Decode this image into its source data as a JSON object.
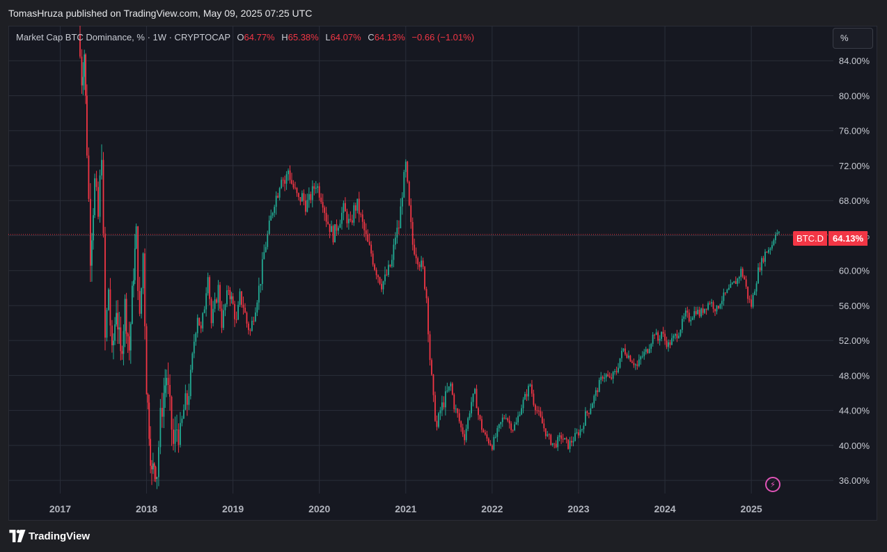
{
  "header": {
    "published": "TomasHruza published on TradingView.com, May 09, 2025 07:25 UTC"
  },
  "legend": {
    "symbol": "Market Cap BTC Dominance, % · 1W · CRYPTOCAP",
    "o_label": "O",
    "o_value": "64.77%",
    "h_label": "H",
    "h_value": "65.38%",
    "l_label": "L",
    "l_value": "64.07%",
    "c_label": "C",
    "c_value": "64.13%",
    "change": "−0.66 (−1.01%)"
  },
  "scale_button": "%",
  "price_tag": {
    "symbol": "BTC.D",
    "value": "64.13%"
  },
  "footer": {
    "brand": "TradingView"
  },
  "icons": {
    "alert": "bolt-icon",
    "logo": "tradingview-logo-icon"
  },
  "colors": {
    "up": "#22ab94",
    "down": "#f23645",
    "background": "#161821",
    "grid": "#2a2e39"
  },
  "chart_data": {
    "type": "candlestick",
    "title": "Market Cap BTC Dominance, % · 1W · CRYPTOCAP",
    "x_ticks": [
      "2017",
      "2018",
      "2019",
      "2020",
      "2021",
      "2022",
      "2023",
      "2024",
      "2025"
    ],
    "y_ticks": [
      "36.00%",
      "40.00%",
      "44.00%",
      "48.00%",
      "52.00%",
      "56.00%",
      "60.00%",
      "64.00%",
      "68.00%",
      "72.00%",
      "76.00%",
      "80.00%",
      "84.00%"
    ],
    "ylim": [
      34.5,
      88
    ],
    "xlim": [
      2016.4,
      2025.95
    ],
    "last_value": 64.13,
    "grid": true,
    "path": [
      [
        2017.21,
        87
      ],
      [
        2017.25,
        82
      ],
      [
        2017.28,
        85
      ],
      [
        2017.31,
        74
      ],
      [
        2017.35,
        62
      ],
      [
        2017.4,
        70
      ],
      [
        2017.44,
        66
      ],
      [
        2017.48,
        74
      ],
      [
        2017.52,
        52
      ],
      [
        2017.56,
        58
      ],
      [
        2017.6,
        50
      ],
      [
        2017.65,
        56
      ],
      [
        2017.7,
        50
      ],
      [
        2017.75,
        56
      ],
      [
        2017.8,
        51
      ],
      [
        2017.85,
        60
      ],
      [
        2017.88,
        64
      ],
      [
        2017.92,
        54
      ],
      [
        2017.96,
        62
      ],
      [
        2018.0,
        47
      ],
      [
        2018.03,
        42
      ],
      [
        2018.06,
        36.5
      ],
      [
        2018.09,
        38
      ],
      [
        2018.12,
        37
      ],
      [
        2018.16,
        43
      ],
      [
        2018.2,
        46
      ],
      [
        2018.23,
        48
      ],
      [
        2018.27,
        44
      ],
      [
        2018.31,
        40
      ],
      [
        2018.35,
        42
      ],
      [
        2018.39,
        41
      ],
      [
        2018.43,
        44
      ],
      [
        2018.47,
        45
      ],
      [
        2018.51,
        48
      ],
      [
        2018.55,
        52
      ],
      [
        2018.59,
        55
      ],
      [
        2018.63,
        53
      ],
      [
        2018.67,
        56
      ],
      [
        2018.71,
        60
      ],
      [
        2018.75,
        54
      ],
      [
        2018.79,
        56
      ],
      [
        2018.83,
        58
      ],
      [
        2018.87,
        54
      ],
      [
        2018.91,
        56
      ],
      [
        2018.95,
        58
      ],
      [
        2019.0,
        56
      ],
      [
        2019.04,
        54
      ],
      [
        2019.08,
        57
      ],
      [
        2019.12,
        56
      ],
      [
        2019.16,
        54
      ],
      [
        2019.2,
        53
      ],
      [
        2019.24,
        55
      ],
      [
        2019.28,
        57
      ],
      [
        2019.32,
        59
      ],
      [
        2019.36,
        62
      ],
      [
        2019.4,
        64
      ],
      [
        2019.44,
        66
      ],
      [
        2019.48,
        68
      ],
      [
        2019.52,
        69
      ],
      [
        2019.56,
        71
      ],
      [
        2019.6,
        70
      ],
      [
        2019.64,
        71.5
      ],
      [
        2019.68,
        70
      ],
      [
        2019.72,
        69
      ],
      [
        2019.76,
        68
      ],
      [
        2019.8,
        68.5
      ],
      [
        2019.84,
        67.5
      ],
      [
        2019.88,
        68
      ],
      [
        2019.92,
        69
      ],
      [
        2019.96,
        70
      ],
      [
        2020.0,
        69
      ],
      [
        2020.04,
        68
      ],
      [
        2020.08,
        66
      ],
      [
        2020.12,
        65
      ],
      [
        2020.16,
        64
      ],
      [
        2020.2,
        65
      ],
      [
        2020.24,
        66
      ],
      [
        2020.28,
        67
      ],
      [
        2020.32,
        66
      ],
      [
        2020.36,
        65
      ],
      [
        2020.4,
        67
      ],
      [
        2020.44,
        67.5
      ],
      [
        2020.48,
        66
      ],
      [
        2020.52,
        64.5
      ],
      [
        2020.56,
        63
      ],
      [
        2020.6,
        62
      ],
      [
        2020.64,
        60.5
      ],
      [
        2020.68,
        59.5
      ],
      [
        2020.72,
        58.5
      ],
      [
        2020.76,
        59
      ],
      [
        2020.8,
        60
      ],
      [
        2020.84,
        61
      ],
      [
        2020.88,
        64
      ],
      [
        2020.92,
        65
      ],
      [
        2020.96,
        69
      ],
      [
        2021.0,
        72
      ],
      [
        2021.04,
        67
      ],
      [
        2021.08,
        63
      ],
      [
        2021.12,
        62
      ],
      [
        2021.16,
        61
      ],
      [
        2021.2,
        60
      ],
      [
        2021.24,
        57
      ],
      [
        2021.28,
        50
      ],
      [
        2021.32,
        45
      ],
      [
        2021.36,
        42
      ],
      [
        2021.4,
        44
      ],
      [
        2021.44,
        45
      ],
      [
        2021.48,
        46
      ],
      [
        2021.52,
        47
      ],
      [
        2021.56,
        44.5
      ],
      [
        2021.6,
        43.5
      ],
      [
        2021.64,
        42
      ],
      [
        2021.68,
        41
      ],
      [
        2021.72,
        43
      ],
      [
        2021.76,
        45
      ],
      [
        2021.8,
        46
      ],
      [
        2021.84,
        43.5
      ],
      [
        2021.88,
        42
      ],
      [
        2021.92,
        41
      ],
      [
        2021.96,
        40.5
      ],
      [
        2022.0,
        40
      ],
      [
        2022.04,
        41
      ],
      [
        2022.08,
        42
      ],
      [
        2022.12,
        43
      ],
      [
        2022.16,
        43.5
      ],
      [
        2022.2,
        42.5
      ],
      [
        2022.24,
        42
      ],
      [
        2022.28,
        42.5
      ],
      [
        2022.32,
        44
      ],
      [
        2022.36,
        45
      ],
      [
        2022.4,
        46
      ],
      [
        2022.44,
        47
      ],
      [
        2022.48,
        45
      ],
      [
        2022.52,
        44
      ],
      [
        2022.56,
        43
      ],
      [
        2022.6,
        42
      ],
      [
        2022.64,
        41
      ],
      [
        2022.68,
        40.5
      ],
      [
        2022.72,
        40
      ],
      [
        2022.76,
        40.5
      ],
      [
        2022.8,
        41
      ],
      [
        2022.84,
        40.5
      ],
      [
        2022.88,
        40
      ],
      [
        2022.92,
        40.5
      ],
      [
        2022.96,
        41
      ],
      [
        2023.0,
        41.5
      ],
      [
        2023.04,
        42
      ],
      [
        2023.08,
        43.5
      ],
      [
        2023.12,
        44
      ],
      [
        2023.16,
        45
      ],
      [
        2023.2,
        46
      ],
      [
        2023.24,
        47
      ],
      [
        2023.28,
        48
      ],
      [
        2023.32,
        48
      ],
      [
        2023.36,
        47.5
      ],
      [
        2023.4,
        48
      ],
      [
        2023.44,
        48.5
      ],
      [
        2023.48,
        50
      ],
      [
        2023.52,
        51
      ],
      [
        2023.56,
        50.5
      ],
      [
        2023.6,
        50
      ],
      [
        2023.64,
        49.5
      ],
      [
        2023.68,
        49
      ],
      [
        2023.72,
        50
      ],
      [
        2023.76,
        50.5
      ],
      [
        2023.8,
        51
      ],
      [
        2023.84,
        52
      ],
      [
        2023.88,
        53
      ],
      [
        2023.92,
        52
      ],
      [
        2023.96,
        53
      ],
      [
        2024.0,
        52
      ],
      [
        2024.04,
        51.5
      ],
      [
        2024.08,
        52
      ],
      [
        2024.12,
        52.5
      ],
      [
        2024.16,
        53
      ],
      [
        2024.2,
        54
      ],
      [
        2024.24,
        55
      ],
      [
        2024.28,
        54.5
      ],
      [
        2024.32,
        55
      ],
      [
        2024.36,
        55.5
      ],
      [
        2024.4,
        55
      ],
      [
        2024.44,
        55.5
      ],
      [
        2024.48,
        56
      ],
      [
        2024.52,
        56.5
      ],
      [
        2024.56,
        56
      ],
      [
        2024.6,
        55.5
      ],
      [
        2024.64,
        56.5
      ],
      [
        2024.68,
        57
      ],
      [
        2024.72,
        57.5
      ],
      [
        2024.76,
        58
      ],
      [
        2024.8,
        58.5
      ],
      [
        2024.84,
        59
      ],
      [
        2024.88,
        60
      ],
      [
        2024.92,
        59
      ],
      [
        2024.96,
        57
      ],
      [
        2025.0,
        56
      ],
      [
        2025.04,
        58
      ],
      [
        2025.08,
        60
      ],
      [
        2025.12,
        61
      ],
      [
        2025.16,
        62
      ],
      [
        2025.2,
        62.5
      ],
      [
        2025.24,
        63
      ],
      [
        2025.28,
        64.5
      ],
      [
        2025.32,
        64.13
      ]
    ]
  }
}
